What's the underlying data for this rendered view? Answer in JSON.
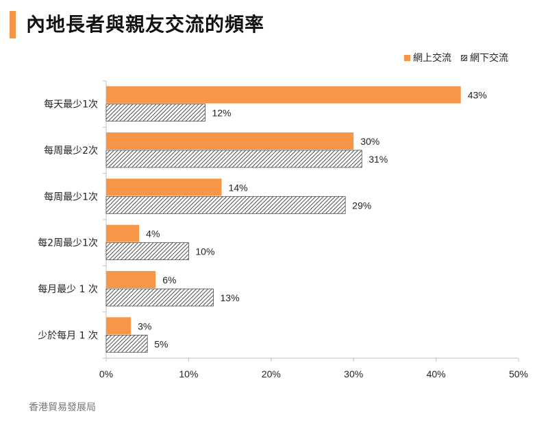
{
  "title": "內地長者與親友交流的頻率",
  "source": "香港貿易發展局",
  "legend": {
    "online": "網上交流",
    "offline": "網下交流"
  },
  "colors": {
    "accent": "#f79646",
    "online": "#f79646",
    "offline_stroke": "#4d4d4d"
  },
  "chart_data": {
    "type": "bar",
    "orientation": "horizontal",
    "categories": [
      "每天最少1次",
      "每周最少2次",
      "每周最少1次",
      "每2周最少1次",
      "每月最少 1 次",
      "少於每月 1 次"
    ],
    "series": [
      {
        "name": "網上交流",
        "values": [
          43,
          30,
          14,
          4,
          6,
          3
        ]
      },
      {
        "name": "網下交流",
        "values": [
          12,
          31,
          29,
          10,
          13,
          5
        ]
      }
    ],
    "xlim": [
      0,
      50
    ],
    "xticks": [
      0,
      10,
      20,
      30,
      40,
      50
    ],
    "xtick_labels": [
      "0%",
      "10%",
      "20%",
      "30%",
      "40%",
      "50%"
    ],
    "value_suffix": "%",
    "grid": false,
    "legend_position": "top-right"
  }
}
